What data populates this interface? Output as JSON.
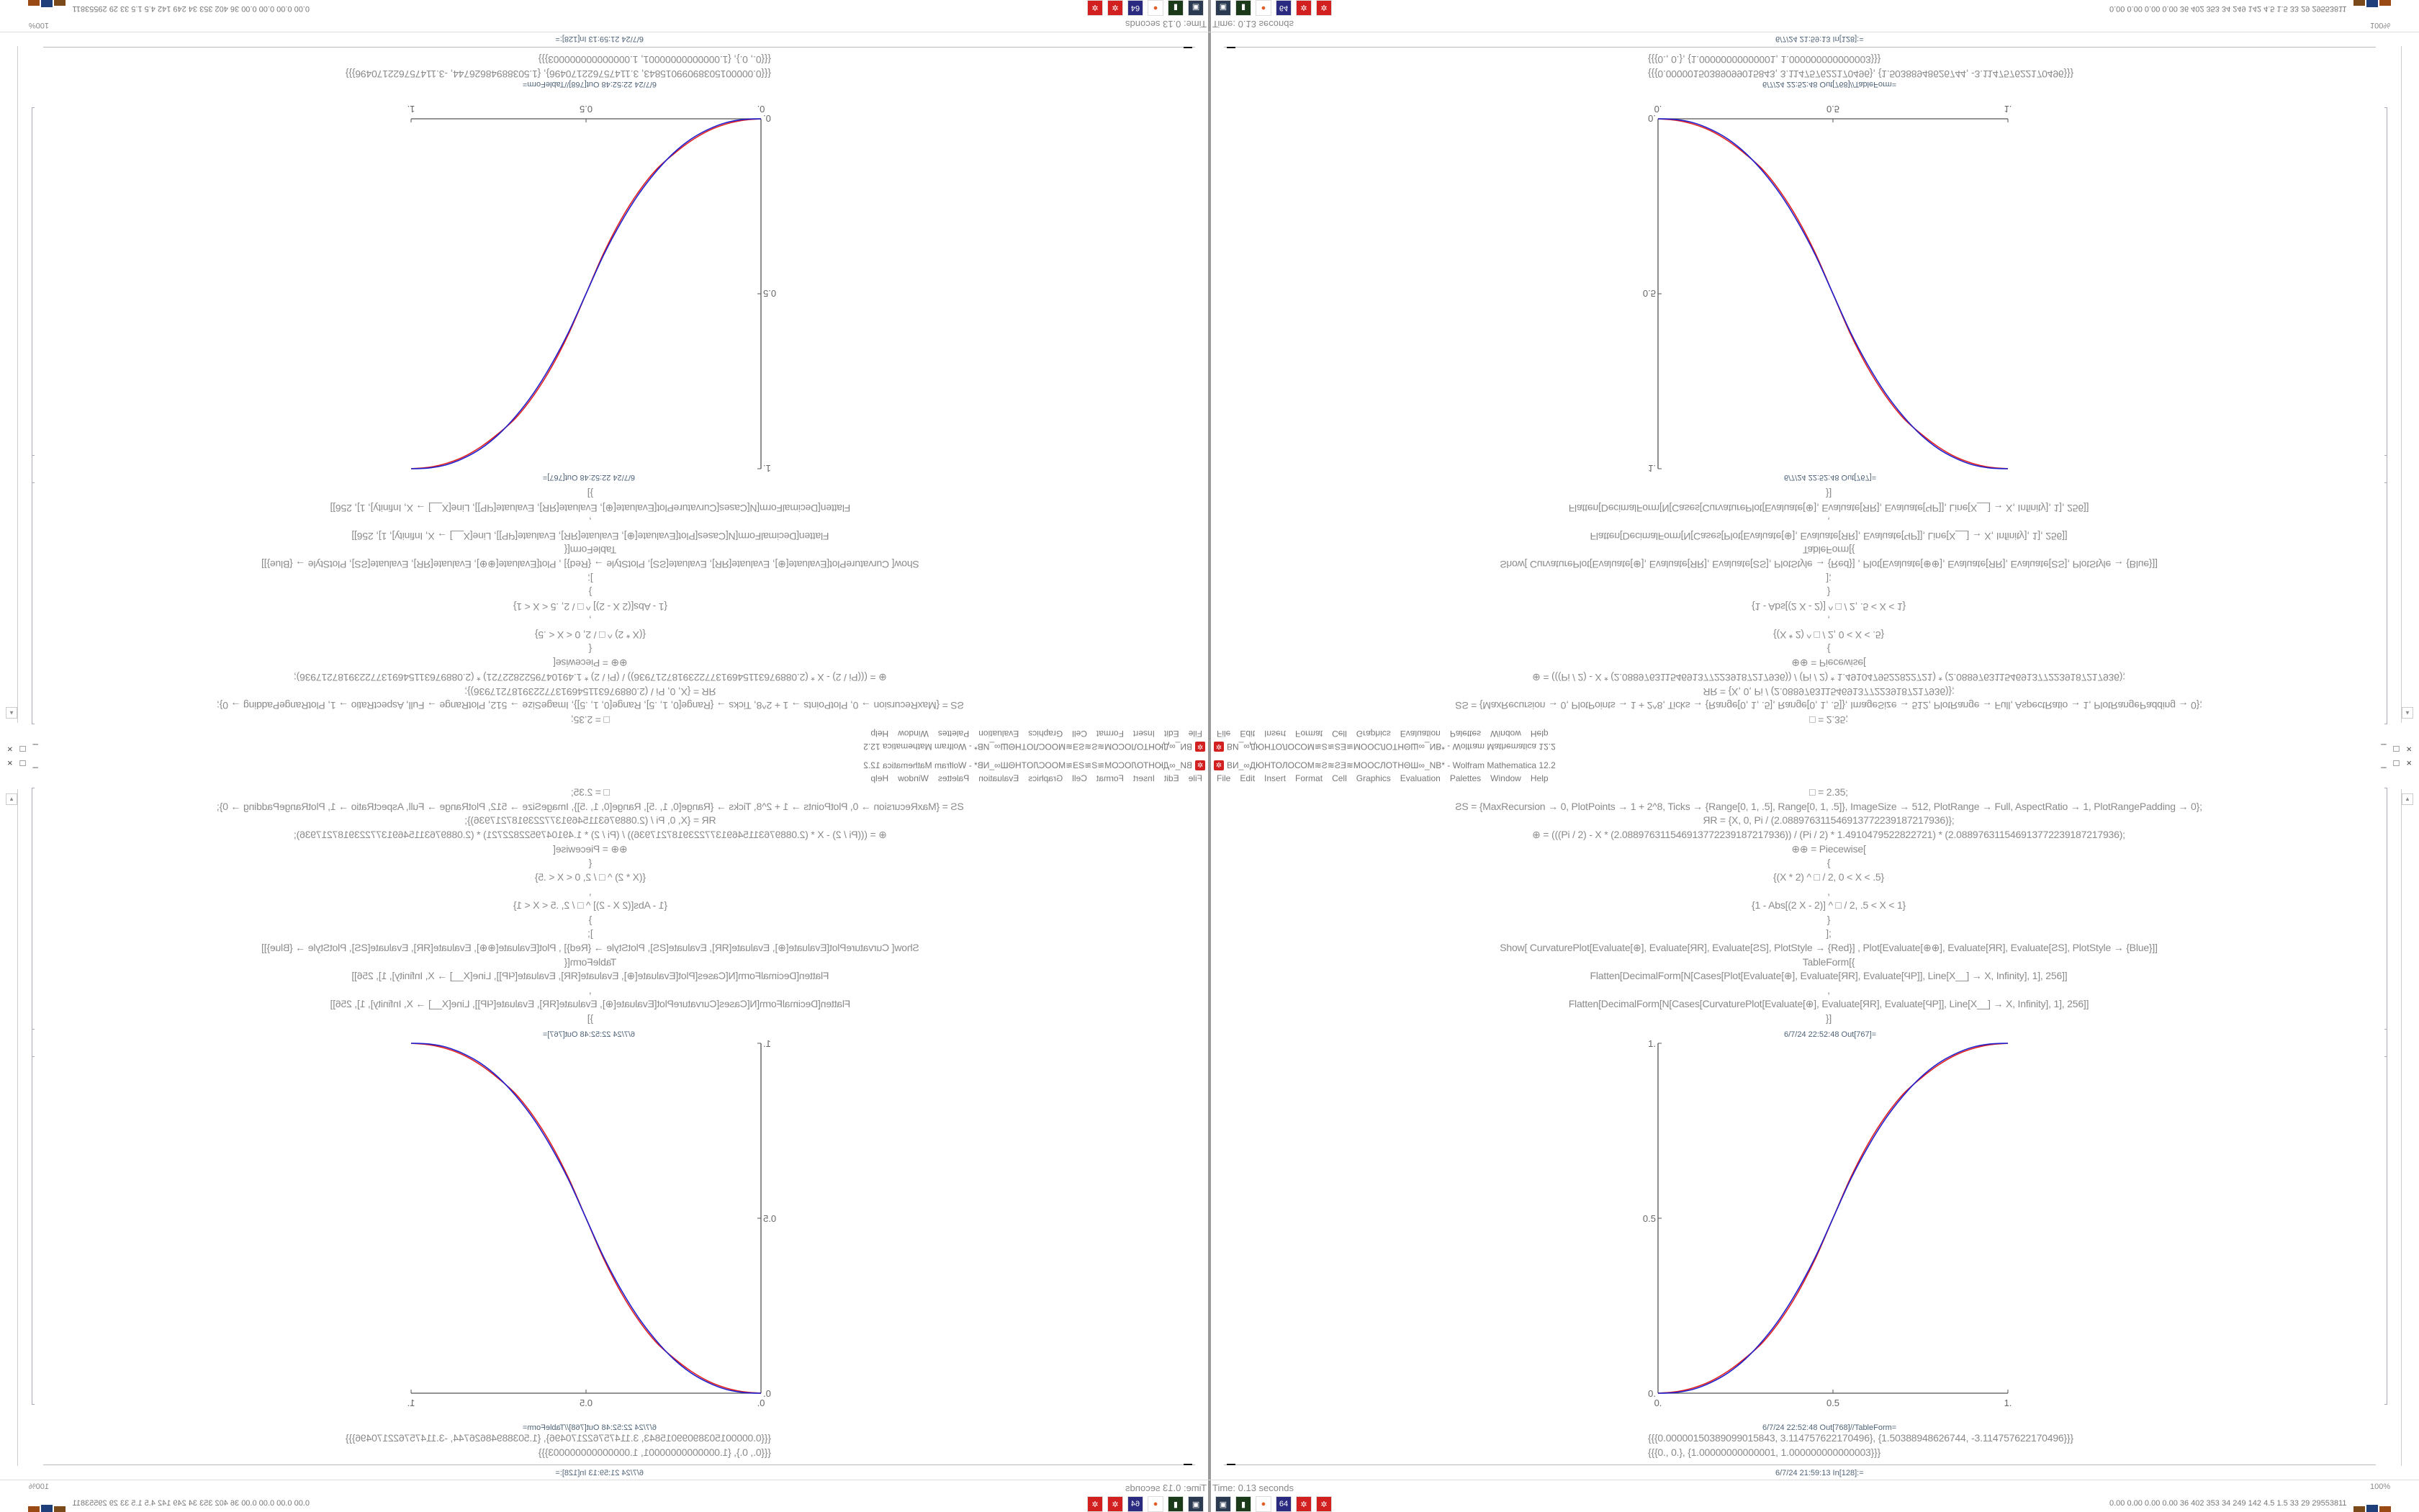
{
  "window": {
    "title": "ВИ_∞ДЮНТОЛОСОМ≋Ƨ≋ƧƎ≋МООСЛОТНΘШ∞_NB* - Wolfram Mathematica 12.2",
    "controls": [
      "_",
      "□",
      "×"
    ]
  },
  "menu": [
    "File",
    "Edit",
    "Insert",
    "Format",
    "Cell",
    "Graphics",
    "Evaluation",
    "Palettes",
    "Window",
    "Help"
  ],
  "notebook": {
    "input_lines": [
      "□ = 2.35;",
      "ƧS = {MaxRecursion → 0, PlotPoints → 1 + 2^8, Ticks → {Range[0, 1, .5], Range[0, 1, .5]}, ImageSize → 512, PlotRange → Full, AspectRatio → 1, PlotRangePadding → 0};",
      "ЯR = {X, 0, Pi / (2.088976311546913772239187217936)};",
      "⊕ = (((Pi / 2) - X * (2.088976311546913772239187217936)) / (Pi / 2) * 1.4910479522822721) * (2.088976311546913772239187217936);",
      "⊕⊕ = Piecewise[",
      "{",
      "{(X * 2) ^ □ / 2, 0 < X < .5}",
      ",",
      "{1 - Abs[(2 X - 2)] ^ □ / 2, .5 < X < 1}",
      "}",
      "];",
      "Show[   CurvaturePlot[Evaluate[⊕], Evaluate[ЯR], Evaluate[ƧS], PlotStyle → {Red}]   ,   Plot[Evaluate[⊕⊕], Evaluate[ЯR], Evaluate[ƧS],  PlotStyle → {Blue}]]",
      "TableForm[{",
      "Flatten[DecimalForm[N[Cases[Plot[Evaluate[⊕], Evaluate[ЯR], Evaluate[ϤP]], Line[X__] → X, Infinity], 1], 256]]",
      ",",
      "Flatten[DecimalForm[N[Cases[CurvaturePlot[Evaluate[⊕], Evaluate[ЯR], Evaluate[ϤP]], Line[X__] → X, Infinity], 1], 256]]",
      "}]"
    ],
    "out1_label": "6/7/24 22:52:48 Out[767]=",
    "out2_label": "6/7/24 22:52:48 Out[768]//TableForm=",
    "out2_rows": [
      "{{{0.0000015038909901584​3, 3.114757622170496}, {1.503889486267​44, -3.114757622170496}}}",
      "{{{0., 0.}, {1.00000000000001, 1.000000000000003}}}"
    ],
    "next_input_label": "6/7/24 21:59:13 In[128]:="
  },
  "status": {
    "time": "Time: 0.13 seconds",
    "zoom": "100%"
  },
  "taskbar": [
    "monitor-icon",
    "terminal-icon",
    "firefox-icon",
    "floppy-64-icon",
    "mathematica-icon",
    "mathematica-icon"
  ],
  "tray": {
    "text": "0.00 0.00 0.00 0.00  36  402  353  34  249  142  4.5  1.5  33  29  29553811",
    "bar_colors": [
      "#f0e040",
      "#f0e040",
      "#f0e040",
      "#7a4a1a",
      "#1f3f7a",
      "#9a4a14",
      "#3cc040",
      "#3cc040"
    ]
  },
  "chart_data": {
    "type": "line",
    "xlim": [
      0,
      1
    ],
    "ylim": [
      0,
      1
    ],
    "x_ticks": [
      "0.",
      "0.5",
      "1."
    ],
    "y_ticks": [
      "0.",
      "0.5",
      "1."
    ],
    "grid": false,
    "x": [
      0,
      0.05,
      0.1,
      0.15,
      0.2,
      0.25,
      0.3,
      0.35,
      0.4,
      0.45,
      0.5,
      0.55,
      0.6,
      0.65,
      0.7,
      0.75,
      0.8,
      0.85,
      0.9,
      0.95,
      1
    ],
    "series": [
      {
        "color": "#e02020",
        "values": [
          0,
          0.004,
          0.015,
          0.034,
          0.063,
          0.101,
          0.146,
          0.209,
          0.288,
          0.385,
          0.5,
          0.615,
          0.712,
          0.791,
          0.854,
          0.899,
          0.937,
          0.966,
          0.985,
          0.996,
          1
        ]
      },
      {
        "color": "#2020d0",
        "values": [
          0,
          0.002,
          0.011,
          0.03,
          0.058,
          0.098,
          0.151,
          0.216,
          0.296,
          0.39,
          0.5,
          0.61,
          0.704,
          0.784,
          0.849,
          0.902,
          0.942,
          0.97,
          0.989,
          0.998,
          1
        ]
      }
    ]
  }
}
